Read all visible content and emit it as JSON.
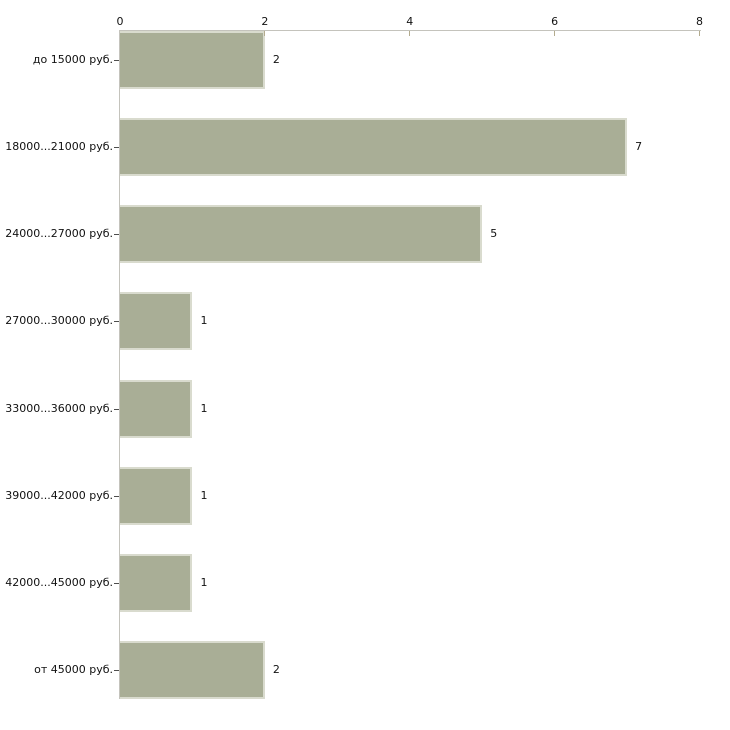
{
  "chart_data": {
    "type": "bar",
    "orientation": "horizontal",
    "title": "",
    "xlabel": "",
    "ylabel": "",
    "axis_position": "top",
    "xlim": [
      0,
      8
    ],
    "x_ticks": [
      "0",
      "2",
      "4",
      "6",
      "8"
    ],
    "x_tick_values": [
      0,
      2,
      4,
      6,
      8
    ],
    "grid": false,
    "legend": "none",
    "categories": [
      "до 15000 руб.",
      "18000...21000 руб.",
      "24000...27000 руб.",
      "27000...30000 руб.",
      "33000...36000 руб.",
      "39000...42000 руб.",
      "42000...45000 руб.",
      "от 45000 руб."
    ],
    "values": [
      2,
      7,
      5,
      1,
      1,
      1,
      1,
      2
    ]
  },
  "colors": {
    "bar_fill": "#a9ae96",
    "bar_edge_light": "#d9dbce",
    "axis_line": "#c4c3bc",
    "tick_mark": "#b3ab8e",
    "text": "#111111",
    "background": "#ffffff"
  }
}
